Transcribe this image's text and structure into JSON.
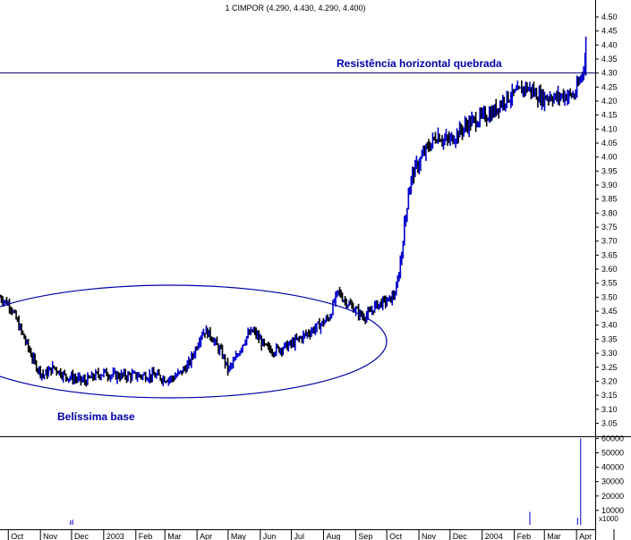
{
  "chart_data": {
    "type": "ohlc",
    "title": "1 CIMPOR (4.290, 4.430, 4.290, 4.400)",
    "colors": {
      "bearish": "#000000",
      "bullish": "#0000cc",
      "annotation": "#0000aa",
      "grid": "#000000"
    },
    "y_axis": {
      "ylim": [
        3.0,
        4.55
      ],
      "ticks": [
        "4.50",
        "4.45",
        "4.40",
        "4.35",
        "4.30",
        "4.25",
        "4.20",
        "4.15",
        "4.10",
        "4.05",
        "4.00",
        "3.95",
        "3.90",
        "3.85",
        "3.80",
        "3.75",
        "3.70",
        "3.65",
        "3.60",
        "3.55",
        "3.50",
        "3.45",
        "3.40",
        "3.35",
        "3.30",
        "3.25",
        "3.20",
        "3.15",
        "3.10",
        "3.05"
      ]
    },
    "volume_axis": {
      "ylim": [
        0,
        65000
      ],
      "ticks": [
        "60000",
        "50000",
        "40000",
        "30000",
        "20000",
        "10000"
      ],
      "unit_label": "x1000"
    },
    "x_axis": {
      "ticks": [
        "Oct",
        "Nov",
        "Dec",
        "2003",
        "Feb",
        "Mar",
        "Apr",
        "May",
        "Jun",
        "Jul",
        "Aug",
        "Sep",
        "Oct",
        "Nov",
        "Dec",
        "2004",
        "Feb",
        "Mar",
        "Apr"
      ],
      "tick_day": [
        0,
        31,
        61,
        92,
        123,
        151,
        182,
        212,
        243,
        273,
        304,
        335,
        365,
        396,
        426,
        457,
        488,
        517,
        548
      ],
      "xlim_days": [
        -8,
        566
      ]
    },
    "price_path": [
      [
        -8,
        3.5
      ],
      [
        2,
        3.47
      ],
      [
        10,
        3.4
      ],
      [
        18,
        3.33
      ],
      [
        26,
        3.26
      ],
      [
        34,
        3.22
      ],
      [
        44,
        3.25
      ],
      [
        54,
        3.22
      ],
      [
        64,
        3.21
      ],
      [
        74,
        3.2
      ],
      [
        84,
        3.22
      ],
      [
        92,
        3.23
      ],
      [
        102,
        3.22
      ],
      [
        112,
        3.22
      ],
      [
        122,
        3.22
      ],
      [
        132,
        3.22
      ],
      [
        142,
        3.22
      ],
      [
        150,
        3.21
      ],
      [
        158,
        3.21
      ],
      [
        166,
        3.23
      ],
      [
        174,
        3.26
      ],
      [
        180,
        3.31
      ],
      [
        186,
        3.37
      ],
      [
        190,
        3.38
      ],
      [
        196,
        3.36
      ],
      [
        202,
        3.32
      ],
      [
        206,
        3.3
      ],
      [
        212,
        3.24
      ],
      [
        218,
        3.27
      ],
      [
        224,
        3.32
      ],
      [
        230,
        3.36
      ],
      [
        236,
        3.38
      ],
      [
        242,
        3.35
      ],
      [
        248,
        3.32
      ],
      [
        256,
        3.31
      ],
      [
        264,
        3.32
      ],
      [
        272,
        3.33
      ],
      [
        280,
        3.35
      ],
      [
        288,
        3.37
      ],
      [
        296,
        3.39
      ],
      [
        304,
        3.41
      ],
      [
        310,
        3.43
      ],
      [
        314,
        3.48
      ],
      [
        318,
        3.52
      ],
      [
        324,
        3.49
      ],
      [
        330,
        3.47
      ],
      [
        336,
        3.45
      ],
      [
        342,
        3.43
      ],
      [
        348,
        3.44
      ],
      [
        354,
        3.47
      ],
      [
        360,
        3.48
      ],
      [
        368,
        3.49
      ],
      [
        374,
        3.52
      ],
      [
        378,
        3.62
      ],
      [
        382,
        3.75
      ],
      [
        386,
        3.88
      ],
      [
        390,
        3.94
      ],
      [
        396,
        3.98
      ],
      [
        402,
        4.02
      ],
      [
        408,
        4.05
      ],
      [
        414,
        4.08
      ],
      [
        420,
        4.06
      ],
      [
        426,
        4.06
      ],
      [
        432,
        4.08
      ],
      [
        438,
        4.1
      ],
      [
        444,
        4.12
      ],
      [
        450,
        4.13
      ],
      [
        456,
        4.14
      ],
      [
        462,
        4.15
      ],
      [
        468,
        4.16
      ],
      [
        474,
        4.19
      ],
      [
        480,
        4.21
      ],
      [
        486,
        4.22
      ],
      [
        492,
        4.23
      ],
      [
        498,
        4.25
      ],
      [
        504,
        4.24
      ],
      [
        510,
        4.22
      ],
      [
        516,
        4.21
      ],
      [
        522,
        4.22
      ],
      [
        528,
        4.21
      ],
      [
        534,
        4.22
      ],
      [
        540,
        4.22
      ],
      [
        546,
        4.22
      ],
      [
        550,
        4.26
      ],
      [
        554,
        4.3
      ],
      [
        557,
        4.4
      ]
    ],
    "volume": [
      {
        "day": 60,
        "value": 3000
      },
      {
        "day": 62,
        "value": 3500
      },
      {
        "day": 503,
        "value": 9000
      },
      {
        "day": 549,
        "value": 5000
      },
      {
        "day": 552,
        "value": 60000
      }
    ],
    "resistance_level": 4.3,
    "annotations": [
      {
        "text": "Resistência horizontal quebrada"
      },
      {
        "text": "Belíssima base"
      }
    ]
  }
}
